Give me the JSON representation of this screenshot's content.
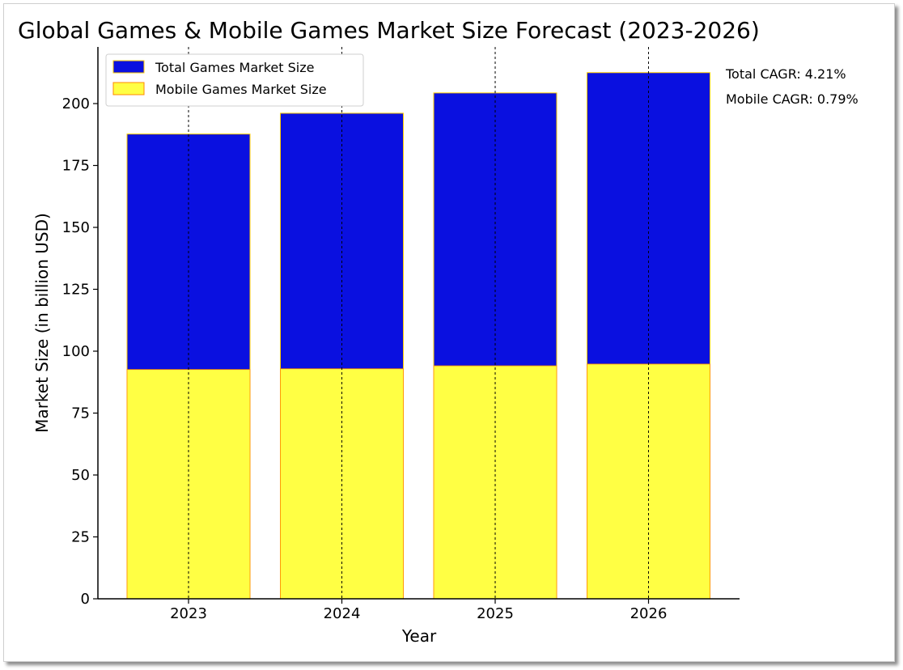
{
  "chart_data": {
    "type": "bar",
    "title": "Global Games & Mobile Games Market Size Forecast (2023-2026)",
    "xlabel": "Year",
    "ylabel": "Market Size (in billion USD)",
    "categories": [
      "2023",
      "2024",
      "2025",
      "2026"
    ],
    "series": [
      {
        "name": "Total Games Market Size",
        "color": "#0a10e0",
        "values": [
          187.7,
          196.1,
          204.3,
          212.5
        ]
      },
      {
        "name": "Mobile Games Market Size",
        "color": "#ffff44",
        "values": [
          92.6,
          92.9,
          94.1,
          94.8
        ]
      }
    ],
    "ylim": [
      0,
      212.5
    ],
    "yticks": [
      0,
      25,
      50,
      75,
      100,
      125,
      150,
      175,
      200
    ],
    "grid": "vertical dashed lines at each category",
    "legend_position": "top-left",
    "annotations": [
      "Total CAGR: 4.21%",
      "Mobile CAGR: 0.79%"
    ]
  }
}
